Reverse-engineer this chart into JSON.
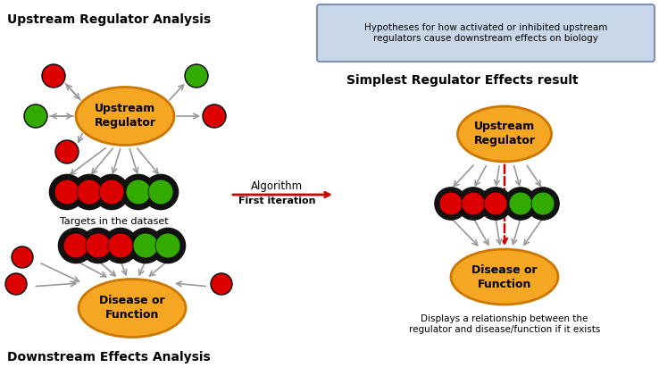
{
  "bg_color": "#ffffff",
  "title_upstream": "Upstream Regulator Analysis",
  "title_downstream": "Downstream Effects Analysis",
  "title_simplest": "Simplest Regulator Effects result",
  "text_targets": "Targets in the dataset",
  "text_algorithm": "Algorithm",
  "text_first_iter": "First iteration",
  "text_hypothesis": "Hypotheses for how activated or inhibited upstream\nregulators cause downstream effects on biology",
  "text_displays": "Displays a relationship between the\nregulator and disease/function if it exists",
  "label_upstream": "Upstream\nRegulator",
  "label_disease": "Disease or\nFunction",
  "ellipse_color": "#F5A623",
  "ellipse_edge": "#CC7700",
  "red_circle": "#DD0000",
  "green_circle": "#33AA00",
  "arrow_color": "#999999",
  "red_arrow_color": "#CC0000",
  "hypothesis_bg": "#C8D8E8",
  "hypothesis_border": "#8090B0"
}
